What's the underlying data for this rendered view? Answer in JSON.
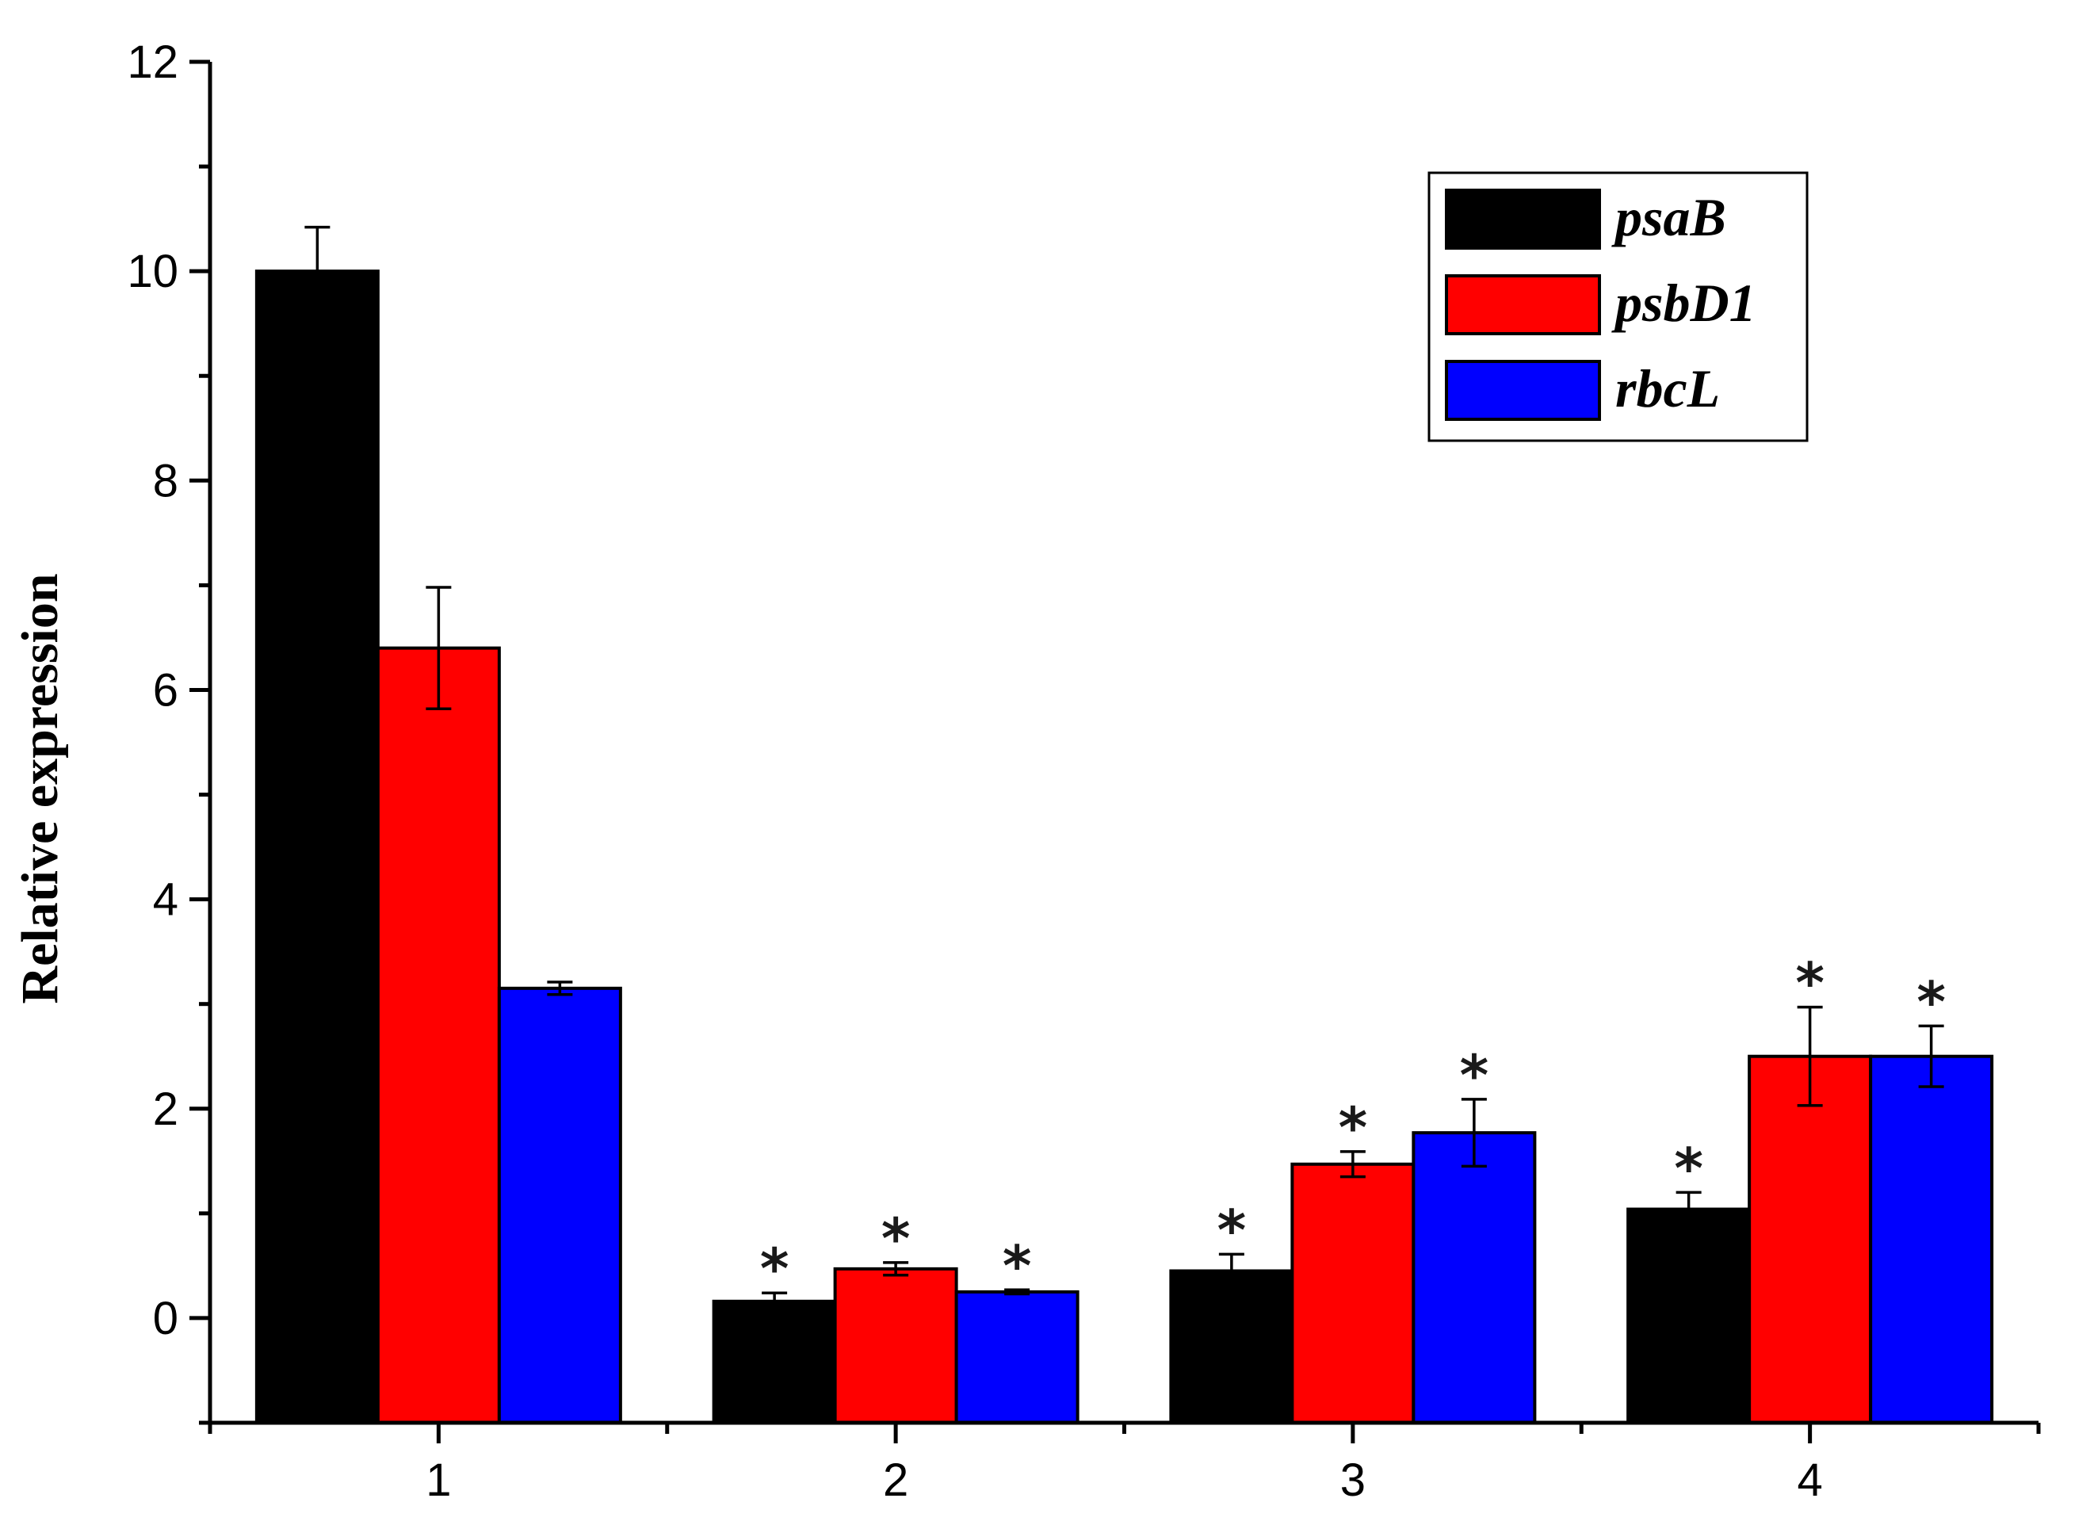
{
  "chart_data": {
    "type": "bar",
    "title": "",
    "xlabel": "",
    "ylabel": "Relative expression",
    "categories": [
      "1",
      "2",
      "3",
      "4"
    ],
    "ylim": [
      -1,
      12
    ],
    "yticks": [
      0,
      2,
      4,
      6,
      8,
      10,
      12
    ],
    "yticks_labels": [
      "0",
      "2",
      "4",
      "6",
      "8",
      "10",
      "12"
    ],
    "grid": false,
    "legend_position": "top-right",
    "significance_marker": "*",
    "series": [
      {
        "name": "psaB",
        "color": "#000000",
        "values": [
          10.0,
          0.16,
          0.45,
          1.04
        ],
        "errors": [
          0.42,
          0.08,
          0.16,
          0.16
        ],
        "significant": [
          false,
          true,
          true,
          true
        ]
      },
      {
        "name": "psbD1",
        "color": "#ff0000",
        "values": [
          6.4,
          0.47,
          1.47,
          2.5
        ],
        "errors": [
          0.58,
          0.06,
          0.12,
          0.47
        ],
        "significant": [
          false,
          true,
          true,
          true
        ]
      },
      {
        "name": "rbcL",
        "color": "#0000ff",
        "values": [
          3.15,
          0.25,
          1.77,
          2.5
        ],
        "errors": [
          0.06,
          0.02,
          0.32,
          0.29
        ],
        "significant": [
          false,
          true,
          true,
          true
        ]
      }
    ]
  }
}
